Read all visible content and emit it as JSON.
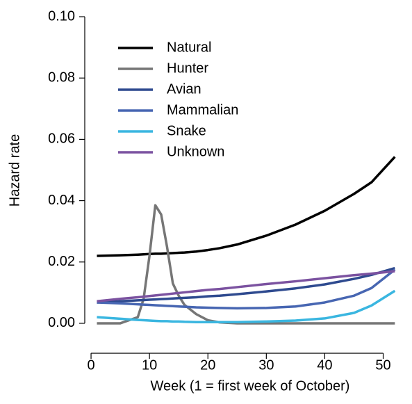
{
  "chart_data": {
    "type": "line",
    "xlabel": "Week (1 = first week of October)",
    "ylabel": "Hazard rate",
    "x": [
      1,
      5,
      8,
      9,
      10,
      11,
      12,
      13,
      14,
      15,
      16,
      18,
      20,
      22,
      25,
      30,
      35,
      40,
      45,
      48,
      52
    ],
    "series": [
      {
        "name": "Natural",
        "color": "#000000",
        "values": [
          0.022,
          0.0222,
          0.0224,
          0.0225,
          0.0226,
          0.0227,
          0.0227,
          0.0228,
          0.0229,
          0.023,
          0.0231,
          0.0234,
          0.0239,
          0.0245,
          0.0257,
          0.0286,
          0.0322,
          0.0367,
          0.0422,
          0.046,
          0.0543
        ]
      },
      {
        "name": "Hunter",
        "color": "#767676",
        "values": [
          0,
          0,
          0.002,
          0.008,
          0.022,
          0.0385,
          0.0355,
          0.025,
          0.013,
          0.009,
          0.006,
          0.003,
          0.001,
          0.0003,
          0,
          0,
          0,
          0,
          0,
          0,
          0
        ]
      },
      {
        "name": "Avian",
        "color": "#2e4a8f",
        "values": [
          0.0068,
          0.0072,
          0.0075,
          0.0076,
          0.0077,
          0.0078,
          0.0079,
          0.008,
          0.0081,
          0.0082,
          0.0083,
          0.0085,
          0.0088,
          0.009,
          0.0095,
          0.0104,
          0.0114,
          0.0127,
          0.0145,
          0.0158,
          0.018
        ]
      },
      {
        "name": "Mammalian",
        "color": "#4766b2",
        "values": [
          0.0068,
          0.0065,
          0.0062,
          0.0061,
          0.006,
          0.0059,
          0.0058,
          0.0057,
          0.0056,
          0.0055,
          0.0054,
          0.0052,
          0.0051,
          0.005,
          0.0049,
          0.005,
          0.0055,
          0.0068,
          0.009,
          0.0115,
          0.0175
        ]
      },
      {
        "name": "Snake",
        "color": "#3ab6e0",
        "values": [
          0.002,
          0.0015,
          0.0011,
          0.001,
          0.0009,
          0.0008,
          0.0007,
          0.0007,
          0.0006,
          0.0006,
          0.0005,
          0.0004,
          0.0004,
          0.0004,
          0.0004,
          0.0006,
          0.0009,
          0.0016,
          0.0034,
          0.0058,
          0.0106
        ]
      },
      {
        "name": "Unknown",
        "color": "#7b52a0",
        "values": [
          0.0072,
          0.008,
          0.0085,
          0.0087,
          0.0089,
          0.0091,
          0.0093,
          0.0095,
          0.0097,
          0.0099,
          0.0101,
          0.0105,
          0.0109,
          0.0112,
          0.0118,
          0.0128,
          0.0137,
          0.0147,
          0.0157,
          0.0162,
          0.017
        ]
      }
    ],
    "xlim": [
      -1.04,
      54.04
    ],
    "ylim": [
      -0.004,
      0.104
    ],
    "xticks": [
      0,
      10,
      20,
      30,
      40,
      50
    ],
    "yticks": [
      {
        "value": 0,
        "label": "0.00"
      },
      {
        "value": 0.02,
        "label": "0.02"
      },
      {
        "value": 0.04,
        "label": "0.04"
      },
      {
        "value": 0.06,
        "label": "0.06"
      },
      {
        "value": 0.08,
        "label": "0.08"
      },
      {
        "value": 0.1,
        "label": "0.10"
      }
    ],
    "legend": "top-left"
  }
}
